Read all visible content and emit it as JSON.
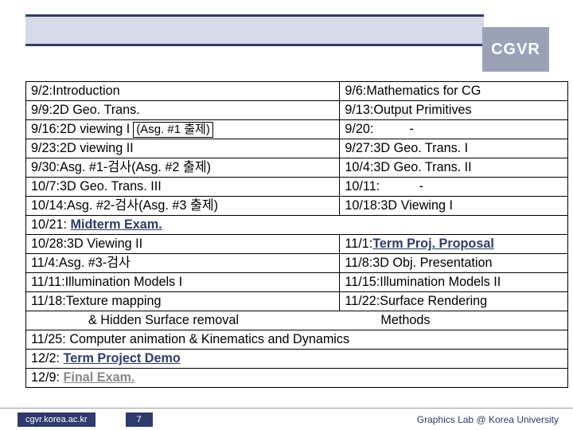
{
  "header": {
    "label": "CGVR"
  },
  "schedule": [
    {
      "left_date": "9/2:",
      "left_text": "Introduction",
      "right_date": "9/6:",
      "right_text": "Mathematics for CG"
    },
    {
      "left_date": "9/9:",
      "left_text": "2D Geo. Trans.",
      "right_date": "9/13:",
      "right_text": "Output Primitives"
    },
    {
      "left_date": "9/16:",
      "left_text": "2D viewing I",
      "asg": "(Asg. #1 출제)",
      "right_date": "9/20:",
      "right_text": "          -"
    },
    {
      "left_date": "9/23:",
      "left_text": "2D viewing II",
      "right_date": "9/27:",
      "right_text": "3D Geo. Trans. I"
    },
    {
      "left_date": "9/30:",
      "left_text": "Asg. #1-검사",
      "asg_plain": "   (Asg. #2 출제)",
      "right_date": "10/4:",
      "right_text": "3D Geo. Trans. II"
    },
    {
      "left_date": "10/7:",
      "left_text": "3D Geo. Trans. III",
      "right_date": "10/11:",
      "right_text": "           -"
    },
    {
      "left_date": "10/14:",
      "left_text": "Asg. #2-검사",
      "asg_plain": "  (Asg. #3 출제)",
      "right_date": "10/18:",
      "right_text": "3D Viewing I"
    },
    {
      "full": true,
      "left_date": "10/21:",
      "left_link": "Midterm Exam."
    },
    {
      "left_date": "10/28:",
      "left_text": "3D Viewing II",
      "right_date": "11/1:",
      "right_link": "Term Proj. Proposal"
    },
    {
      "left_date": "11/4:",
      "left_text": "Asg. #3-검사",
      "right_date": "11/8:",
      "right_text": "3D Obj. Presentation"
    },
    {
      "left_date": "11/11:",
      "left_text": "Illumination Models I",
      "right_date": "11/15:",
      "right_text": "Illumination Models II"
    },
    {
      "left_date": "11/18:",
      "left_text": "Texture mapping",
      "right_date": "11/22:",
      "right_text": "Surface Rendering"
    },
    {
      "indent": true,
      "left_text": "& Hidden Surface removal",
      "right_text": "          Methods",
      "no_left_date": true
    },
    {
      "full": true,
      "left_date": "11/25:",
      "left_text": "Computer animation & Kinematics and Dynamics"
    },
    {
      "full": true,
      "left_date": "12/2:",
      "left_link": "Term Project Demo"
    },
    {
      "full": true,
      "left_date": "12/9:",
      "left_bold": "Final Exam.",
      "no_border": true
    }
  ],
  "footer": {
    "url": "cgvr.korea.ac.kr",
    "page": "7",
    "lab": "Graphics Lab @ Korea University"
  }
}
